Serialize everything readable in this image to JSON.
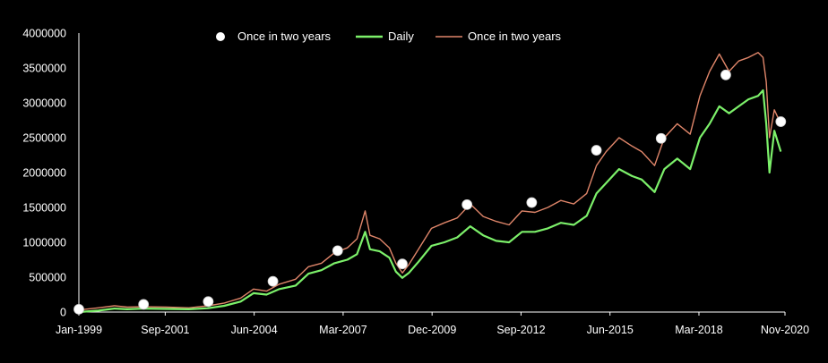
{
  "chart_data": {
    "type": "line",
    "title": "",
    "xlabel": "",
    "ylabel": "",
    "xlim": [
      1999.0,
      2020.83
    ],
    "ylim": [
      0,
      4000000
    ],
    "y_ticks": [
      0,
      500000,
      1000000,
      1500000,
      2000000,
      2500000,
      3000000,
      3500000,
      4000000
    ],
    "y_tick_labels": [
      "0",
      "500000",
      "1000000",
      "1500000",
      "2000000",
      "2500000",
      "3000000",
      "3500000",
      "4000000"
    ],
    "x_ticks": [
      1999.0,
      2001.67,
      2004.42,
      2007.17,
      2009.92,
      2012.67,
      2015.42,
      2018.17,
      2020.83
    ],
    "x_tick_labels": [
      "Jan-1999",
      "Sep-2001",
      "Jun-2004",
      "Mar-2007",
      "Dec-2009",
      "Sep-2012",
      "Jun-2015",
      "Mar-2018",
      "Nov-2020"
    ],
    "legend_position": "top-center",
    "colors": {
      "background": "#000000",
      "daily": "#7CF06A",
      "twoyear_line": "#E0866A",
      "twoyear_points": "#ffffff",
      "axis": "#ffffff"
    },
    "series": [
      {
        "name": "Once in two years",
        "kind": "points",
        "x": [
          1999.0,
          2001.0,
          2003.0,
          2005.0,
          2007.0,
          2009.0,
          2011.0,
          2013.0,
          2015.0,
          2017.0,
          2019.0,
          2020.7
        ],
        "values": [
          40000,
          110000,
          150000,
          440000,
          880000,
          690000,
          1540000,
          1570000,
          2320000,
          2490000,
          3400000,
          2730000
        ]
      },
      {
        "name": "Daily",
        "kind": "line",
        "x": [
          1999.0,
          1999.6,
          2000.1,
          2000.5,
          2001.0,
          2001.7,
          2002.4,
          2003.0,
          2003.5,
          2004.0,
          2004.4,
          2004.8,
          2005.2,
          2005.7,
          2006.1,
          2006.5,
          2006.9,
          2007.3,
          2007.6,
          2007.85,
          2008.0,
          2008.3,
          2008.6,
          2008.8,
          2009.0,
          2009.2,
          2009.5,
          2009.9,
          2010.3,
          2010.7,
          2011.1,
          2011.5,
          2011.9,
          2012.3,
          2012.7,
          2013.1,
          2013.5,
          2013.9,
          2014.3,
          2014.7,
          2015.0,
          2015.3,
          2015.7,
          2016.1,
          2016.4,
          2016.8,
          2017.1,
          2017.5,
          2017.9,
          2018.2,
          2018.5,
          2018.8,
          2019.1,
          2019.4,
          2019.7,
          2020.0,
          2020.15,
          2020.25,
          2020.35,
          2020.5,
          2020.7
        ],
        "values": [
          0,
          20000,
          50000,
          40000,
          50000,
          45000,
          40000,
          55000,
          90000,
          150000,
          270000,
          250000,
          330000,
          380000,
          550000,
          600000,
          700000,
          750000,
          830000,
          1150000,
          900000,
          870000,
          780000,
          580000,
          490000,
          560000,
          720000,
          950000,
          1000000,
          1070000,
          1230000,
          1100000,
          1020000,
          1000000,
          1150000,
          1150000,
          1200000,
          1280000,
          1250000,
          1380000,
          1700000,
          1850000,
          2050000,
          1950000,
          1900000,
          1720000,
          2050000,
          2200000,
          2050000,
          2500000,
          2700000,
          2950000,
          2850000,
          2950000,
          3050000,
          3100000,
          3180000,
          2700000,
          2000000,
          2600000,
          2300000
        ]
      },
      {
        "name": "Once in two years",
        "kind": "line",
        "x": [
          1999.0,
          1999.6,
          2000.1,
          2000.5,
          2001.0,
          2001.7,
          2002.4,
          2003.0,
          2003.5,
          2004.0,
          2004.4,
          2004.8,
          2005.2,
          2005.7,
          2006.1,
          2006.5,
          2006.9,
          2007.3,
          2007.6,
          2007.85,
          2008.0,
          2008.3,
          2008.6,
          2008.8,
          2009.0,
          2009.2,
          2009.5,
          2009.9,
          2010.3,
          2010.7,
          2011.1,
          2011.5,
          2011.9,
          2012.3,
          2012.7,
          2013.1,
          2013.5,
          2013.9,
          2014.3,
          2014.7,
          2015.0,
          2015.3,
          2015.7,
          2016.1,
          2016.4,
          2016.8,
          2017.1,
          2017.5,
          2017.9,
          2018.2,
          2018.5,
          2018.8,
          2019.1,
          2019.4,
          2019.7,
          2020.0,
          2020.15,
          2020.25,
          2020.35,
          2020.5,
          2020.7
        ],
        "values": [
          30000,
          60000,
          90000,
          70000,
          75000,
          70000,
          60000,
          90000,
          130000,
          200000,
          330000,
          300000,
          400000,
          470000,
          650000,
          700000,
          850000,
          920000,
          1050000,
          1450000,
          1100000,
          1050000,
          920000,
          700000,
          560000,
          680000,
          900000,
          1200000,
          1280000,
          1350000,
          1550000,
          1370000,
          1300000,
          1250000,
          1450000,
          1430000,
          1500000,
          1600000,
          1550000,
          1700000,
          2100000,
          2300000,
          2500000,
          2380000,
          2300000,
          2100000,
          2500000,
          2700000,
          2550000,
          3100000,
          3450000,
          3700000,
          3450000,
          3600000,
          3650000,
          3720000,
          3650000,
          3300000,
          2500000,
          2900000,
          2700000
        ]
      }
    ]
  }
}
